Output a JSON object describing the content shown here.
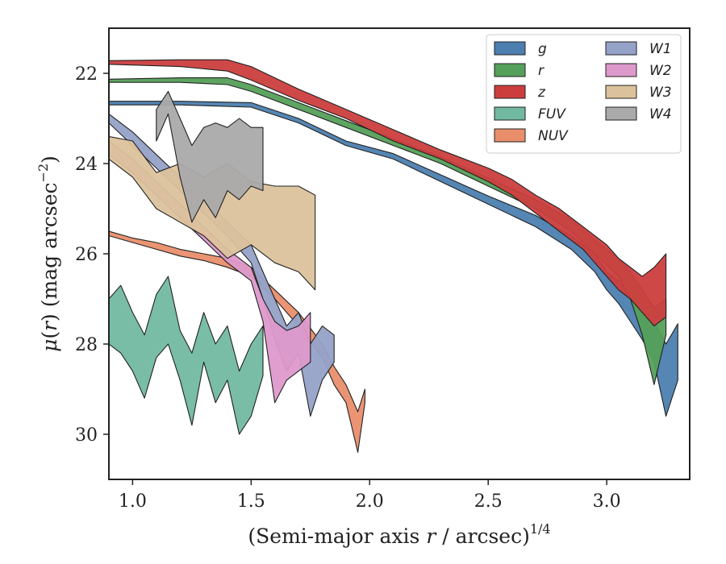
{
  "chart_data": {
    "type": "area",
    "title": "",
    "xlabel": "(Semi-major axis r / arcsec)^{1/4}",
    "ylabel": "μ(r) (mag arcsec^{−2})",
    "xlim": [
      0.9,
      3.35
    ],
    "ylim": [
      31.0,
      21.0
    ],
    "y_inverted": true,
    "xticks": [
      1.0,
      1.5,
      2.0,
      2.5,
      3.0
    ],
    "xtick_labels": [
      "1.0",
      "1.5",
      "2.0",
      "2.5",
      "3.0"
    ],
    "yticks": [
      22,
      24,
      26,
      28,
      30
    ],
    "ytick_labels": [
      "22",
      "24",
      "26",
      "28",
      "30"
    ],
    "grid": false,
    "legend_position": "top-right",
    "legend_columns": 2,
    "series": [
      {
        "name": "g",
        "color": "#4c7fb0",
        "x": [
          0.9,
          1.2,
          1.5,
          1.7,
          1.9,
          2.1,
          2.3,
          2.5,
          2.7,
          2.85,
          2.95,
          3.0,
          3.05,
          3.1,
          3.15,
          3.2,
          3.25,
          3.3
        ],
        "y_low": [
          22.7,
          22.7,
          22.75,
          23.1,
          23.6,
          23.9,
          24.4,
          24.9,
          25.4,
          25.9,
          26.4,
          26.8,
          27.1,
          27.5,
          27.9,
          28.4,
          29.6,
          28.8
        ],
        "y_high": [
          22.62,
          22.62,
          22.65,
          23.0,
          23.5,
          23.78,
          24.25,
          24.72,
          25.15,
          25.6,
          26.0,
          26.4,
          26.6,
          26.9,
          27.2,
          27.5,
          28.0,
          27.55
        ]
      },
      {
        "name": "r",
        "color": "#55a05a",
        "x": [
          0.9,
          1.2,
          1.4,
          1.5,
          1.7,
          1.9,
          2.1,
          2.3,
          2.5,
          2.7,
          2.85,
          2.95,
          3.05,
          3.1,
          3.15,
          3.2,
          3.25
        ],
        "y_low": [
          22.2,
          22.2,
          22.25,
          22.4,
          22.8,
          23.2,
          23.6,
          24.0,
          24.5,
          25.0,
          25.5,
          26.0,
          26.5,
          27.0,
          27.8,
          28.9,
          27.8
        ],
        "y_high": [
          22.13,
          22.1,
          22.1,
          22.25,
          22.65,
          23.05,
          23.45,
          23.85,
          24.32,
          24.8,
          25.25,
          25.7,
          26.1,
          26.4,
          26.8,
          27.2,
          27.0
        ]
      },
      {
        "name": "z",
        "color": "#cc3e3e",
        "x": [
          0.9,
          1.2,
          1.4,
          1.5,
          1.7,
          1.9,
          2.1,
          2.3,
          2.5,
          2.6,
          2.7,
          2.8,
          2.9,
          2.95,
          3.0,
          3.05,
          3.1,
          3.15,
          3.2,
          3.25
        ],
        "y_low": [
          21.8,
          21.85,
          21.95,
          22.15,
          22.6,
          23.0,
          23.5,
          23.9,
          24.4,
          24.7,
          25.1,
          25.5,
          25.9,
          26.2,
          26.5,
          26.8,
          27.0,
          27.3,
          27.6,
          27.4
        ],
        "y_high": [
          21.72,
          21.7,
          21.7,
          21.85,
          22.35,
          22.8,
          23.25,
          23.7,
          24.1,
          24.35,
          24.7,
          25.0,
          25.4,
          25.6,
          25.8,
          26.1,
          26.3,
          26.5,
          26.3,
          26.0
        ]
      },
      {
        "name": "FUV",
        "color": "#72b9a2",
        "x": [
          0.9,
          0.95,
          1.0,
          1.05,
          1.1,
          1.15,
          1.2,
          1.25,
          1.3,
          1.35,
          1.4,
          1.45,
          1.5,
          1.55
        ],
        "y_low": [
          28.0,
          28.2,
          28.6,
          29.2,
          28.3,
          28.0,
          28.8,
          29.8,
          28.4,
          29.3,
          28.8,
          30.0,
          29.6,
          28.7
        ],
        "y_high": [
          27.0,
          26.7,
          27.3,
          27.8,
          26.9,
          26.5,
          27.7,
          28.2,
          27.3,
          28.0,
          27.6,
          28.6,
          28.0,
          27.6
        ]
      },
      {
        "name": "NUV",
        "color": "#e98e6b",
        "x": [
          0.9,
          1.0,
          1.1,
          1.2,
          1.3,
          1.4,
          1.5,
          1.6,
          1.7,
          1.8,
          1.85,
          1.9,
          1.95,
          1.98
        ],
        "y_low": [
          25.6,
          25.75,
          25.9,
          26.05,
          26.15,
          26.3,
          26.5,
          27.0,
          27.6,
          28.3,
          28.9,
          29.3,
          30.4,
          29.3
        ],
        "y_high": [
          25.5,
          25.65,
          25.75,
          25.9,
          26.0,
          26.1,
          26.3,
          26.8,
          27.3,
          28.0,
          28.5,
          28.9,
          29.5,
          29.0
        ]
      },
      {
        "name": "W1",
        "color": "#95a2c8",
        "x": [
          0.9,
          1.0,
          1.1,
          1.2,
          1.3,
          1.4,
          1.5,
          1.55,
          1.6,
          1.65,
          1.7,
          1.75,
          1.8,
          1.85
        ],
        "y_low": [
          23.1,
          23.6,
          24.1,
          24.6,
          25.1,
          25.6,
          26.2,
          27.0,
          27.9,
          28.6,
          28.2,
          29.6,
          28.8,
          28.4
        ],
        "y_high": [
          22.9,
          23.3,
          23.8,
          24.3,
          24.8,
          25.3,
          25.8,
          26.4,
          27.0,
          27.6,
          27.3,
          28.0,
          27.6,
          27.8
        ]
      },
      {
        "name": "W2",
        "color": "#de99cb",
        "x": [
          0.9,
          1.0,
          1.1,
          1.2,
          1.3,
          1.4,
          1.5,
          1.55,
          1.6,
          1.65,
          1.7,
          1.75
        ],
        "y_low": [
          23.8,
          24.2,
          24.7,
          25.2,
          25.7,
          26.2,
          26.6,
          27.5,
          29.3,
          28.8,
          28.6,
          28.4
        ],
        "y_high": [
          23.5,
          23.9,
          24.4,
          24.9,
          25.4,
          25.9,
          26.3,
          27.0,
          27.5,
          27.7,
          27.6,
          27.3
        ]
      },
      {
        "name": "W3",
        "color": "#dcc29c",
        "x": [
          0.9,
          1.0,
          1.1,
          1.2,
          1.3,
          1.4,
          1.5,
          1.6,
          1.7,
          1.77
        ],
        "y_low": [
          23.9,
          24.3,
          25.0,
          25.3,
          25.6,
          26.1,
          25.8,
          26.2,
          26.4,
          26.8
        ],
        "y_high": [
          23.4,
          23.5,
          24.2,
          24.0,
          24.3,
          24.0,
          24.4,
          24.5,
          24.5,
          24.7
        ]
      },
      {
        "name": "W4",
        "color": "#aaaaaa",
        "x": [
          1.1,
          1.15,
          1.2,
          1.25,
          1.3,
          1.35,
          1.4,
          1.45,
          1.5,
          1.55
        ],
        "y_low": [
          23.5,
          22.9,
          24.3,
          25.3,
          24.8,
          25.2,
          24.6,
          24.8,
          24.5,
          24.6
        ],
        "y_high": [
          22.8,
          22.4,
          23.0,
          23.6,
          23.2,
          23.1,
          23.2,
          23.0,
          23.2,
          23.2
        ]
      }
    ]
  }
}
